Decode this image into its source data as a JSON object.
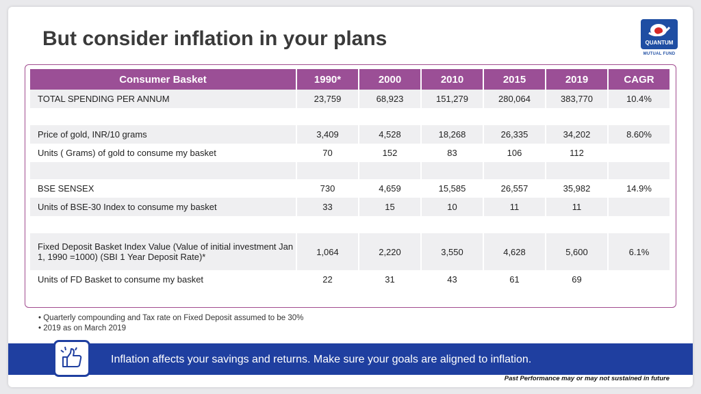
{
  "title": "But consider inflation in your plans",
  "logo": {
    "name": "QUANTUM",
    "sub": "MUTUAL FUND"
  },
  "table": {
    "headers": [
      "Consumer Basket",
      "1990*",
      "2000",
      "2010",
      "2015",
      "2019",
      "CAGR"
    ],
    "rows": [
      [
        "TOTAL SPENDING PER ANNUM",
        "23,759",
        "68,923",
        "151,279",
        "280,064",
        "383,770",
        "10.4%"
      ],
      [
        "",
        "",
        "",
        "",
        "",
        "",
        ""
      ],
      [
        "Price of gold, INR/10 grams",
        "3,409",
        "4,528",
        "18,268",
        "26,335",
        "34,202",
        "8.60%"
      ],
      [
        "Units ( Grams) of gold to consume my basket",
        "70",
        "152",
        "83",
        "106",
        "112",
        ""
      ],
      [
        "",
        "",
        "",
        "",
        "",
        "",
        ""
      ],
      [
        "BSE SENSEX",
        "730",
        "4,659",
        "15,585",
        "26,557",
        "35,982",
        "14.9%"
      ],
      [
        "Units  of BSE-30 Index to consume my basket",
        "33",
        "15",
        "10",
        "11",
        "11",
        ""
      ],
      [
        "",
        "",
        "",
        "",
        "",
        "",
        ""
      ],
      [
        "Fixed Deposit Basket Index Value (Value of initial investment Jan 1, 1990 =1000) (SBI 1 Year Deposit Rate)*",
        "1,064",
        "2,220",
        "3,550",
        "4,628",
        "5,600",
        "6.1%"
      ],
      [
        "Units  of FD Basket to consume my basket",
        "22",
        "31",
        "43",
        "61",
        "69",
        ""
      ]
    ]
  },
  "notes": [
    "Quarterly compounding and Tax rate on Fixed Deposit assumed to be 30%",
    "2019 as on March 2019"
  ],
  "banner": {
    "text": "Inflation affects your savings and returns. Make sure your goals are aligned to inflation.",
    "icon": "thumbs-up-icon"
  },
  "disclaimer": "Past Performance may or may not sustained in future",
  "colors": {
    "header": "#9b4f96",
    "banner": "#1f3fa0",
    "frame": "#a04a8e"
  }
}
